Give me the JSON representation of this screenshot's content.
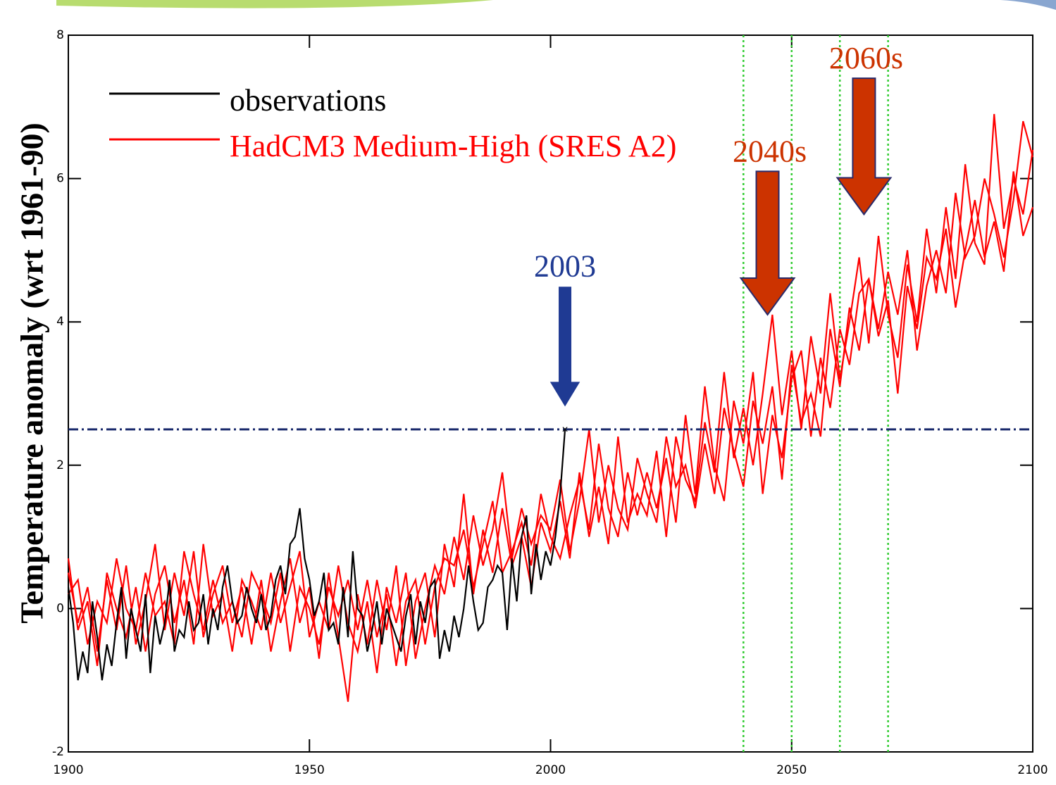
{
  "chart_data": {
    "type": "line",
    "ylabel": "Temperature anomaly (wrt 1961-90)",
    "xlim": [
      1900,
      2100
    ],
    "xticks": [
      1900,
      1950,
      2000,
      2050,
      2100
    ],
    "ylim": [
      -2,
      8
    ],
    "yticks": [
      -2,
      0,
      2,
      4,
      6,
      8
    ],
    "hline": {
      "value": 2.5,
      "color": "#1a2a6c"
    },
    "vlines": {
      "values": [
        2040,
        2050,
        2060,
        2070
      ],
      "color": "#33cc33"
    },
    "series": [
      {
        "name": "observations",
        "color": "#000000",
        "x": [
          1900,
          1901,
          1902,
          1903,
          1904,
          1905,
          1906,
          1907,
          1908,
          1909,
          1910,
          1911,
          1912,
          1913,
          1914,
          1915,
          1916,
          1917,
          1918,
          1919,
          1920,
          1921,
          1922,
          1923,
          1924,
          1925,
          1926,
          1927,
          1928,
          1929,
          1930,
          1931,
          1932,
          1933,
          1934,
          1935,
          1936,
          1937,
          1938,
          1939,
          1940,
          1941,
          1942,
          1943,
          1944,
          1945,
          1946,
          1947,
          1948,
          1949,
          1950,
          1951,
          1952,
          1953,
          1954,
          1955,
          1956,
          1957,
          1958,
          1959,
          1960,
          1961,
          1962,
          1963,
          1964,
          1965,
          1966,
          1967,
          1968,
          1969,
          1970,
          1971,
          1972,
          1973,
          1974,
          1975,
          1976,
          1977,
          1978,
          1979,
          1980,
          1981,
          1982,
          1983,
          1984,
          1985,
          1986,
          1987,
          1988,
          1989,
          1990,
          1991,
          1992,
          1993,
          1994,
          1995,
          1996,
          1997,
          1998,
          1999,
          2000,
          2001,
          2002,
          2003
        ],
        "runs": [
          [
            0.3,
            -0.2,
            -1.0,
            -0.6,
            -0.9,
            0.1,
            -0.4,
            -1.0,
            -0.5,
            -0.8,
            -0.2,
            0.3,
            -0.7,
            0.0,
            -0.3,
            -0.6,
            0.2,
            -0.9,
            -0.1,
            -0.5,
            -0.2,
            0.4,
            -0.6,
            -0.3,
            -0.4,
            0.1,
            -0.3,
            -0.2,
            0.2,
            -0.5,
            0.0,
            -0.3,
            0.3,
            0.6,
            0.1,
            -0.2,
            -0.1,
            0.3,
            0.0,
            -0.2,
            0.2,
            -0.3,
            -0.1,
            0.4,
            0.6,
            0.2,
            0.9,
            1.0,
            1.4,
            0.7,
            0.4,
            -0.1,
            0.1,
            0.5,
            -0.3,
            -0.2,
            -0.5,
            0.3,
            -0.4,
            0.8,
            0.0,
            -0.1,
            -0.6,
            -0.3,
            0.1,
            -0.5,
            0.0,
            -0.2,
            -0.4,
            -0.6,
            -0.1,
            0.2,
            -0.5,
            0.1,
            -0.2,
            0.3,
            0.4,
            -0.7,
            -0.3,
            -0.6,
            -0.1,
            -0.4,
            0.0,
            0.6,
            0.1,
            -0.3,
            -0.2,
            0.3,
            0.4,
            0.6,
            0.5,
            -0.3,
            0.7,
            0.1,
            1.0,
            1.3,
            0.2,
            0.9,
            0.4,
            0.8,
            0.6,
            1.0,
            1.6,
            2.5
          ]
        ]
      },
      {
        "name": "HadCM3 Medium-High (SRES A2)",
        "color": "#ff0000",
        "x": [
          1900,
          1902,
          1904,
          1906,
          1908,
          1910,
          1912,
          1914,
          1916,
          1918,
          1920,
          1922,
          1924,
          1926,
          1928,
          1930,
          1932,
          1934,
          1936,
          1938,
          1940,
          1942,
          1944,
          1946,
          1948,
          1950,
          1952,
          1954,
          1956,
          1958,
          1960,
          1962,
          1964,
          1966,
          1968,
          1970,
          1972,
          1974,
          1976,
          1978,
          1980,
          1982,
          1984,
          1986,
          1988,
          1990,
          1992,
          1994,
          1996,
          1998,
          2000,
          2002,
          2004,
          2006,
          2008,
          2010,
          2012,
          2014,
          2016,
          2018,
          2020,
          2022,
          2024,
          2026,
          2028,
          2030,
          2032,
          2034,
          2036,
          2038,
          2040,
          2042,
          2044,
          2046,
          2048,
          2050,
          2052,
          2054,
          2056,
          2058,
          2060,
          2062,
          2064,
          2066,
          2068,
          2070,
          2072,
          2074,
          2076,
          2078,
          2080,
          2082,
          2084,
          2086,
          2088,
          2090,
          2092,
          2094,
          2096,
          2098,
          2100
        ],
        "runs": [
          [
            0.5,
            -0.2,
            0.3,
            -0.6,
            0.4,
            -0.3,
            0.6,
            -0.5,
            0.1,
            0.9,
            -0.3,
            0.5,
            -0.1,
            0.8,
            -0.4,
            0.2,
            0.6,
            -0.2,
            0.3,
            -0.5,
            0.4,
            -0.6,
            0.1,
            0.7,
            -0.2,
            0.3,
            -0.7,
            0.5,
            -0.4,
            -1.3,
            0.2,
            -0.5,
            0.4,
            -0.3,
            0.6,
            -0.8,
            0.1,
            0.5,
            -0.4,
            0.9,
            0.3,
            1.6,
            0.2,
            1.1,
            0.5,
            1.4,
            0.6,
            1.0,
            0.3,
            1.2,
            0.8,
            1.5,
            0.7,
            1.9,
            1.0,
            1.7,
            0.9,
            2.4,
            1.2,
            1.6,
            1.3,
            2.2,
            1.0,
            2.4,
            1.8,
            1.5,
            2.6,
            1.9,
            3.3,
            2.1,
            2.8,
            2.0,
            3.0,
            4.1,
            2.7,
            3.6,
            2.5,
            3.8,
            3.0,
            4.4,
            3.2,
            4.0,
            4.9,
            3.7,
            5.2,
            4.1,
            3.5,
            4.8,
            4.0,
            5.3,
            4.4,
            5.6,
            4.6,
            6.2,
            5.1,
            4.8,
            6.9,
            5.3,
            6.0,
            5.5,
            6.4
          ],
          [
            0.7,
            -0.3,
            0.1,
            -0.8,
            0.5,
            0.0,
            -0.4,
            0.3,
            -0.6,
            0.2,
            0.6,
            -0.2,
            0.4,
            -0.5,
            0.9,
            -0.1,
            0.2,
            -0.6,
            0.4,
            0.1,
            -0.3,
            0.5,
            -0.2,
            0.3,
            0.8,
            -0.4,
            0.1,
            -0.3,
            0.6,
            -0.2,
            -0.6,
            0.1,
            -0.9,
            0.3,
            -0.2,
            0.5,
            -0.7,
            0.0,
            0.6,
            0.2,
            1.0,
            0.4,
            1.3,
            0.6,
            1.1,
            1.9,
            0.7,
            1.4,
            0.9,
            1.3,
            1.1,
            1.8,
            0.8,
            1.5,
            2.5,
            1.2,
            2.0,
            1.4,
            1.1,
            2.1,
            1.6,
            1.2,
            2.4,
            1.7,
            2.0,
            1.4,
            2.3,
            1.6,
            2.8,
            2.2,
            1.7,
            2.9,
            2.3,
            3.1,
            1.8,
            3.4,
            2.6,
            3.0,
            2.4,
            3.9,
            3.1,
            4.2,
            3.6,
            4.6,
            3.8,
            4.3,
            3.0,
            4.5,
            3.9,
            4.9,
            4.6,
            5.3,
            4.2,
            5.0,
            5.7,
            4.9,
            5.4,
            4.7,
            6.1,
            5.2,
            5.6
          ],
          [
            0.2,
            0.4,
            -0.5,
            0.1,
            -0.2,
            0.7,
            0.0,
            -0.3,
            0.5,
            -0.1,
            0.1,
            -0.5,
            0.8,
            0.2,
            -0.3,
            0.4,
            -0.2,
            0.1,
            -0.4,
            0.5,
            0.2,
            -0.2,
            0.5,
            -0.6,
            0.3,
            0.0,
            -0.5,
            0.3,
            -0.1,
            0.4,
            -0.3,
            0.4,
            -0.4,
            0.2,
            -0.8,
            0.1,
            0.4,
            -0.5,
            0.3,
            0.7,
            0.6,
            1.1,
            0.3,
            0.9,
            1.5,
            0.5,
            0.8,
            1.2,
            0.6,
            1.6,
            1.0,
            0.7,
            1.3,
            1.8,
            1.1,
            2.3,
            1.4,
            1.0,
            1.9,
            1.3,
            1.9,
            1.4,
            2.1,
            1.2,
            2.7,
            1.6,
            3.1,
            2.0,
            1.5,
            2.9,
            2.3,
            3.3,
            1.6,
            2.7,
            2.1,
            3.2,
            3.6,
            2.4,
            3.5,
            2.8,
            3.9,
            3.4,
            4.4,
            4.6,
            3.9,
            4.7,
            4.1,
            5.0,
            3.6,
            4.5,
            5.0,
            4.4,
            5.8,
            4.9,
            5.2,
            6.0,
            5.5,
            4.9,
            5.7,
            6.8,
            6.3
          ]
        ]
      }
    ],
    "annotations": [
      {
        "text": "2003",
        "x": 2003,
        "from": 4.5,
        "to": 2.8,
        "color": "#1f3a93"
      },
      {
        "text": "2040s",
        "x": 2045,
        "from": 6.1,
        "to": 4.1,
        "color": "#cc3300"
      },
      {
        "text": "2060s",
        "x": 2065,
        "from": 7.4,
        "to": 5.5,
        "color": "#cc3300"
      }
    ]
  }
}
